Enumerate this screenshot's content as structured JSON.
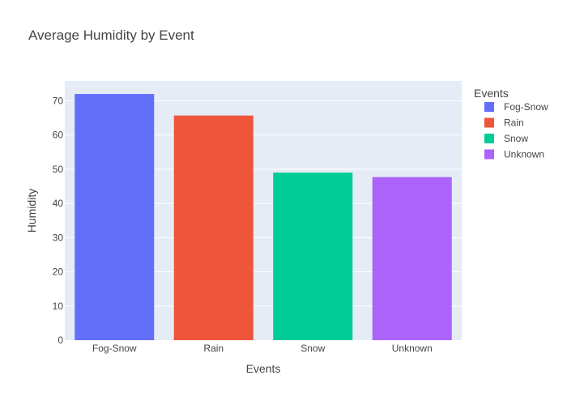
{
  "chart_data": {
    "type": "bar",
    "title": "Average Humidity by Event",
    "xlabel": "Events",
    "ylabel": "Humidity",
    "categories": [
      "Fog-Snow",
      "Rain",
      "Snow",
      "Unknown"
    ],
    "values": [
      72,
      65.7,
      49,
      47.7
    ],
    "colors": [
      "#636efa",
      "#ef553b",
      "#00cc96",
      "#ab63fa"
    ],
    "ylim": [
      0,
      75.8
    ],
    "yticks": [
      0,
      10,
      20,
      30,
      40,
      50,
      60,
      70
    ],
    "grid": true,
    "legend": {
      "title": "Events",
      "position": "top-right",
      "entries": [
        "Fog-Snow",
        "Rain",
        "Snow",
        "Unknown"
      ]
    }
  },
  "colors": {
    "plot_bg": "#e5ecf6",
    "grid": "#ffffff",
    "text": "#444444"
  }
}
